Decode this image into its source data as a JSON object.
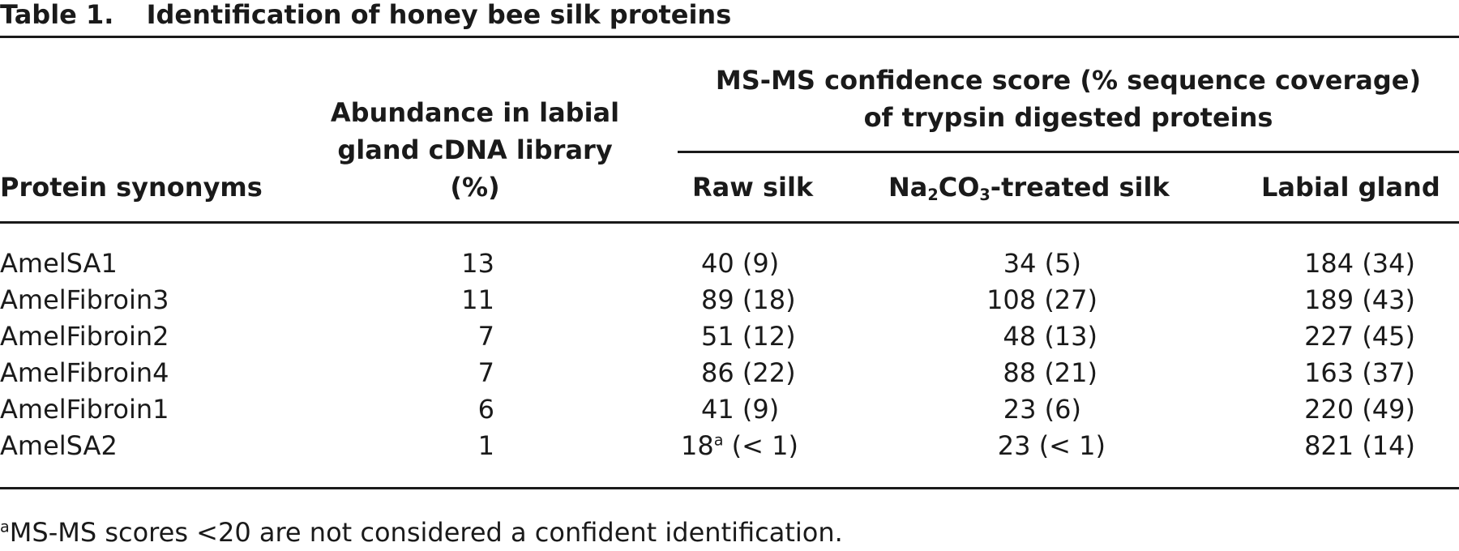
{
  "table": {
    "label": "Table 1.",
    "title": "Identification of honey bee silk proteins",
    "headers": {
      "protein": "Protein synonyms",
      "abundance_line1": "Abundance in labial",
      "abundance_line2": "gland cDNA library",
      "abundance_line3": "(%)",
      "ms_group_line1": "MS-MS confidence score (% sequence coverage)",
      "ms_group_line2": "of trypsin digested proteins",
      "raw_silk": "Raw silk",
      "na_prefix": "Na",
      "na_sub1": "2",
      "na_mid": "CO",
      "na_sub2": "3",
      "na_suffix": "-treated silk",
      "labial_gland": "Labial gland"
    },
    "rows": [
      {
        "protein": "AmelSA1",
        "abundance": "13",
        "raw_silk": "40 (9)",
        "raw_sup": "",
        "raw_rest": "",
        "na_treated": "34 (5)",
        "labial_gland": "184 (34)"
      },
      {
        "protein": "AmelFibroin3",
        "abundance": "11",
        "raw_silk": "89 (18)",
        "raw_sup": "",
        "raw_rest": "",
        "na_treated": "108 (27)",
        "labial_gland": "189 (43)"
      },
      {
        "protein": "AmelFibroin2",
        "abundance": "7",
        "raw_silk": "51 (12)",
        "raw_sup": "",
        "raw_rest": "",
        "na_treated": "48 (13)",
        "labial_gland": "227 (45)"
      },
      {
        "protein": "AmelFibroin4",
        "abundance": "7",
        "raw_silk": "86 (22)",
        "raw_sup": "",
        "raw_rest": "",
        "na_treated": "88 (21)",
        "labial_gland": "163 (37)"
      },
      {
        "protein": "AmelFibroin1",
        "abundance": "6",
        "raw_silk": "41 (9)",
        "raw_sup": "",
        "raw_rest": "",
        "na_treated": "23 (6)",
        "labial_gland": "220 (49)"
      },
      {
        "protein": "AmelSA2",
        "abundance": "1",
        "raw_silk": "18",
        "raw_sup": "a",
        "raw_rest": " (< 1)",
        "na_treated": "23 (< 1)",
        "labial_gland": "821 (14)"
      }
    ],
    "footnote": {
      "marker": "a",
      "text": "MS-MS scores <20 are not considered a confident identification."
    }
  }
}
